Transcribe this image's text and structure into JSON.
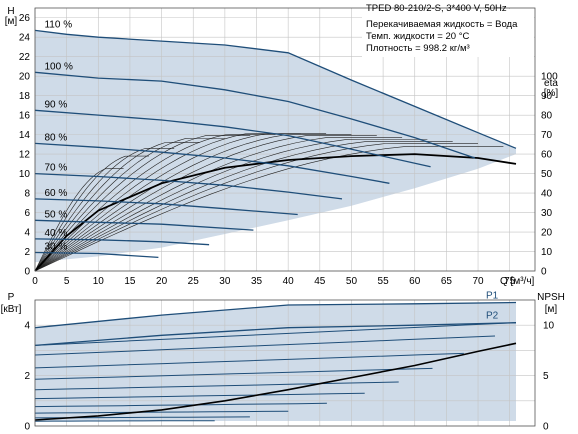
{
  "chart_data": [
    {
      "type": "line",
      "title": "TPED 80-210/2-S, 3*400 V, 50Hz",
      "info_lines": [
        "Перекачиваемая жидкость = Вода",
        "Темп. жидкости = 20 °C",
        "Плотность = 998.2 кг/м³"
      ],
      "left_axis": {
        "label_top": "H",
        "label_unit": "[м]",
        "ticks": [
          0,
          2,
          4,
          6,
          8,
          10,
          12,
          14,
          16,
          18,
          20,
          22,
          24,
          26
        ],
        "range": [
          0,
          27
        ]
      },
      "right_axis": {
        "label_top": "eta",
        "label_unit": "[%]",
        "ticks": [
          0,
          10,
          20,
          30,
          40,
          50,
          60,
          70,
          80,
          90,
          100
        ],
        "range": [
          0,
          135
        ]
      },
      "x_axis": {
        "label": "Q [м³/ч]",
        "ticks": [
          0,
          5,
          10,
          15,
          20,
          25,
          30,
          35,
          40,
          45,
          50,
          55,
          60,
          65,
          70,
          75
        ],
        "range": [
          0,
          79
        ]
      },
      "grid": true,
      "speed_curves": [
        {
          "label": "110 %",
          "q": [
            0,
            5,
            10,
            20,
            30,
            40,
            50,
            60,
            70,
            76
          ],
          "h": [
            24.7,
            24.3,
            24.0,
            23.6,
            23.2,
            22.4,
            19.6,
            16.9,
            14.2,
            12.6
          ]
        },
        {
          "label": "100 %",
          "q": [
            0,
            10,
            20,
            30,
            40,
            50,
            60,
            69.5
          ],
          "h": [
            20.4,
            19.8,
            19.5,
            18.6,
            17.4,
            15.6,
            13.7,
            11.6
          ]
        },
        {
          "label": "90 %",
          "q": [
            0,
            10,
            20,
            30,
            40,
            50,
            62.5
          ],
          "h": [
            16.5,
            16.0,
            15.5,
            14.8,
            13.9,
            12.5,
            10.7
          ]
        },
        {
          "label": "80 %",
          "q": [
            0,
            10,
            20,
            30,
            40,
            50,
            56
          ],
          "h": [
            13.1,
            12.7,
            12.2,
            11.6,
            10.8,
            9.7,
            9.0
          ]
        },
        {
          "label": "70 %",
          "q": [
            0,
            10,
            20,
            30,
            40,
            48.5
          ],
          "h": [
            10.0,
            9.7,
            9.3,
            8.8,
            8.1,
            7.4
          ]
        },
        {
          "label": "60 %",
          "q": [
            0,
            10,
            20,
            30,
            41.5
          ],
          "h": [
            7.4,
            7.2,
            6.9,
            6.4,
            5.8
          ]
        },
        {
          "label": "50 %",
          "q": [
            0,
            10,
            20,
            34.5
          ],
          "h": [
            5.2,
            5.0,
            4.8,
            4.2
          ]
        },
        {
          "label": "40 %",
          "q": [
            0,
            10,
            20,
            27.5
          ],
          "h": [
            3.3,
            3.2,
            3.0,
            2.7
          ]
        },
        {
          "label": "30 %",
          "q": [
            0,
            10,
            19.5
          ],
          "h": [
            1.9,
            1.8,
            1.4
          ]
        }
      ],
      "operating_area_lower": {
        "q": [
          0,
          10,
          20,
          30,
          40,
          50,
          60,
          70,
          76
        ],
        "h": [
          0.9,
          1.5,
          2.4,
          3.8,
          5.2,
          6.7,
          8.5,
          10.5,
          12.0
        ]
      },
      "efficiency_curve": {
        "q": [
          0,
          5,
          10,
          20,
          30,
          40,
          50,
          60,
          70,
          76
        ],
        "eta": [
          0,
          18,
          31,
          45,
          53,
          57,
          59,
          60,
          58,
          55
        ]
      }
    },
    {
      "type": "line",
      "left_axis": {
        "label_top": "P",
        "label_unit": "[кВт]",
        "ticks": [
          0,
          2,
          4
        ],
        "range": [
          0,
          5
        ]
      },
      "right_axis": {
        "label_top": "NPSH",
        "label_unit": "[м]",
        "ticks": [
          0,
          5,
          10
        ],
        "range": [
          0,
          12.5
        ]
      },
      "x_axis": {
        "range": [
          0,
          79
        ]
      },
      "grid": true,
      "series": [
        {
          "name": "P1",
          "q": [
            0,
            20,
            40,
            60,
            76
          ],
          "p": [
            3.9,
            4.4,
            4.8,
            4.85,
            4.9
          ]
        },
        {
          "name": "P2",
          "q": [
            0,
            20,
            40,
            60,
            76
          ],
          "p": [
            3.2,
            3.6,
            3.9,
            4.0,
            4.1
          ]
        }
      ],
      "npsh_curve": {
        "q": [
          0,
          10,
          20,
          30,
          40,
          50,
          60,
          70,
          76
        ],
        "npsh": [
          0.6,
          1.0,
          1.6,
          2.5,
          3.6,
          4.8,
          6.0,
          7.4,
          8.2
        ]
      }
    }
  ]
}
